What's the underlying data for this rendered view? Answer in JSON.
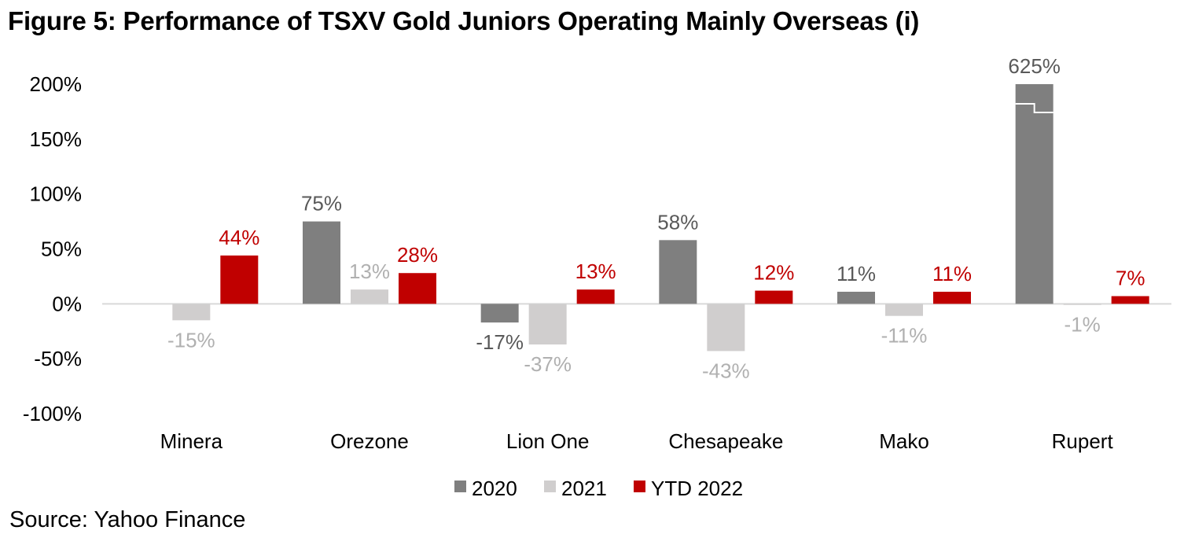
{
  "title": "Figure 5: Performance of TSXV Gold Juniors Operating Mainly Overseas (i)",
  "source": "Source: Yahoo Finance",
  "colors": {
    "2020": "#7f7f7f",
    "2021": "#d0cece",
    "ytd2022": "#c00000",
    "label2020": "#595959",
    "label2021": "#b0b0b0",
    "labelYtd": "#c00000",
    "zero_line": "#d9d9d9"
  },
  "chart_data": {
    "type": "bar",
    "title": "Figure 5: Performance of TSXV Gold Juniors Operating Mainly Overseas (i)",
    "xlabel": "",
    "ylabel": "",
    "categories": [
      "Minera",
      "Orezone",
      "Lion One",
      "Chesapeake",
      "Mako",
      "Rupert"
    ],
    "series": [
      {
        "name": "2020",
        "values": [
          null,
          75,
          -17,
          58,
          11,
          625
        ],
        "labels": [
          "",
          "75%",
          "-17%",
          "58%",
          "11%",
          "625%"
        ]
      },
      {
        "name": "2021",
        "values": [
          -15,
          13,
          -37,
          -43,
          -11,
          -1
        ],
        "labels": [
          "-15%",
          "13%",
          "-37%",
          "-43%",
          "-11%",
          "-1%"
        ]
      },
      {
        "name": "YTD 2022",
        "values": [
          44,
          28,
          13,
          12,
          11,
          7
        ],
        "labels": [
          "44%",
          "28%",
          "13%",
          "12%",
          "11%",
          "7%"
        ]
      }
    ],
    "ylim": [
      -100,
      200
    ],
    "yticks": [
      200,
      150,
      100,
      50,
      0,
      -50,
      -100
    ],
    "ytick_labels": [
      "200%",
      "150%",
      "100%",
      "50%",
      "0%",
      "-50%",
      "-100%"
    ],
    "axis_break": {
      "series": "2020",
      "category": "Rupert",
      "note": "bar truncated at 200% with break marker"
    },
    "grid": false,
    "legend": {
      "position": "bottom",
      "entries": [
        "2020",
        "2021",
        "YTD 2022"
      ]
    }
  }
}
